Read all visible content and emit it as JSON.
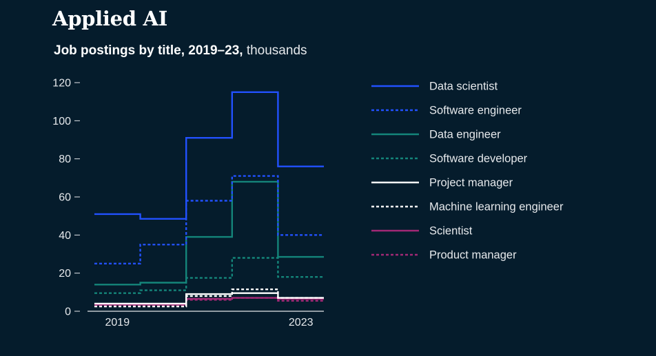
{
  "header": {
    "title": "Applied AI",
    "subtitle_bold": "Job postings by title, 2019–23,",
    "subtitle_light": " thousands"
  },
  "chart_data": {
    "type": "line",
    "step": true,
    "title": "Job postings by title, 2019–23",
    "ylabel": "thousands",
    "xlabel": "",
    "x": [
      2019,
      2020,
      2021,
      2022,
      2023
    ],
    "x_tick_labels": [
      "2019",
      "2023"
    ],
    "y_ticks": [
      0,
      20,
      40,
      60,
      80,
      100,
      120
    ],
    "ylim": [
      0,
      120
    ],
    "legend_position": "right",
    "series": [
      {
        "name": "Data scientist",
        "color": "#2251ff",
        "dash": "solid",
        "values": [
          51,
          48.5,
          91,
          115,
          76
        ]
      },
      {
        "name": "Software engineer",
        "color": "#2251ff",
        "dash": "dotted",
        "values": [
          25,
          35,
          58,
          71,
          40
        ]
      },
      {
        "name": "Data engineer",
        "color": "#14857a",
        "dash": "solid",
        "values": [
          14,
          15,
          39,
          68,
          28.5
        ]
      },
      {
        "name": "Software developer",
        "color": "#14857a",
        "dash": "dotted",
        "values": [
          9.5,
          11,
          17.5,
          28,
          18
        ]
      },
      {
        "name": "Project manager",
        "color": "#ffffff",
        "dash": "solid",
        "values": [
          4,
          4,
          9,
          9.5,
          7
        ]
      },
      {
        "name": "Machine learning engineer",
        "color": "#ffffff",
        "dash": "dotted",
        "values": [
          2.5,
          2.5,
          8,
          11.5,
          7
        ]
      },
      {
        "name": "Scientist",
        "color": "#a32876",
        "dash": "solid",
        "values": [
          3.5,
          3.5,
          6.5,
          7,
          6.5
        ]
      },
      {
        "name": "Product manager",
        "color": "#a32876",
        "dash": "dotted",
        "values": [
          3,
          3,
          6,
          7,
          5.5
        ]
      }
    ]
  }
}
